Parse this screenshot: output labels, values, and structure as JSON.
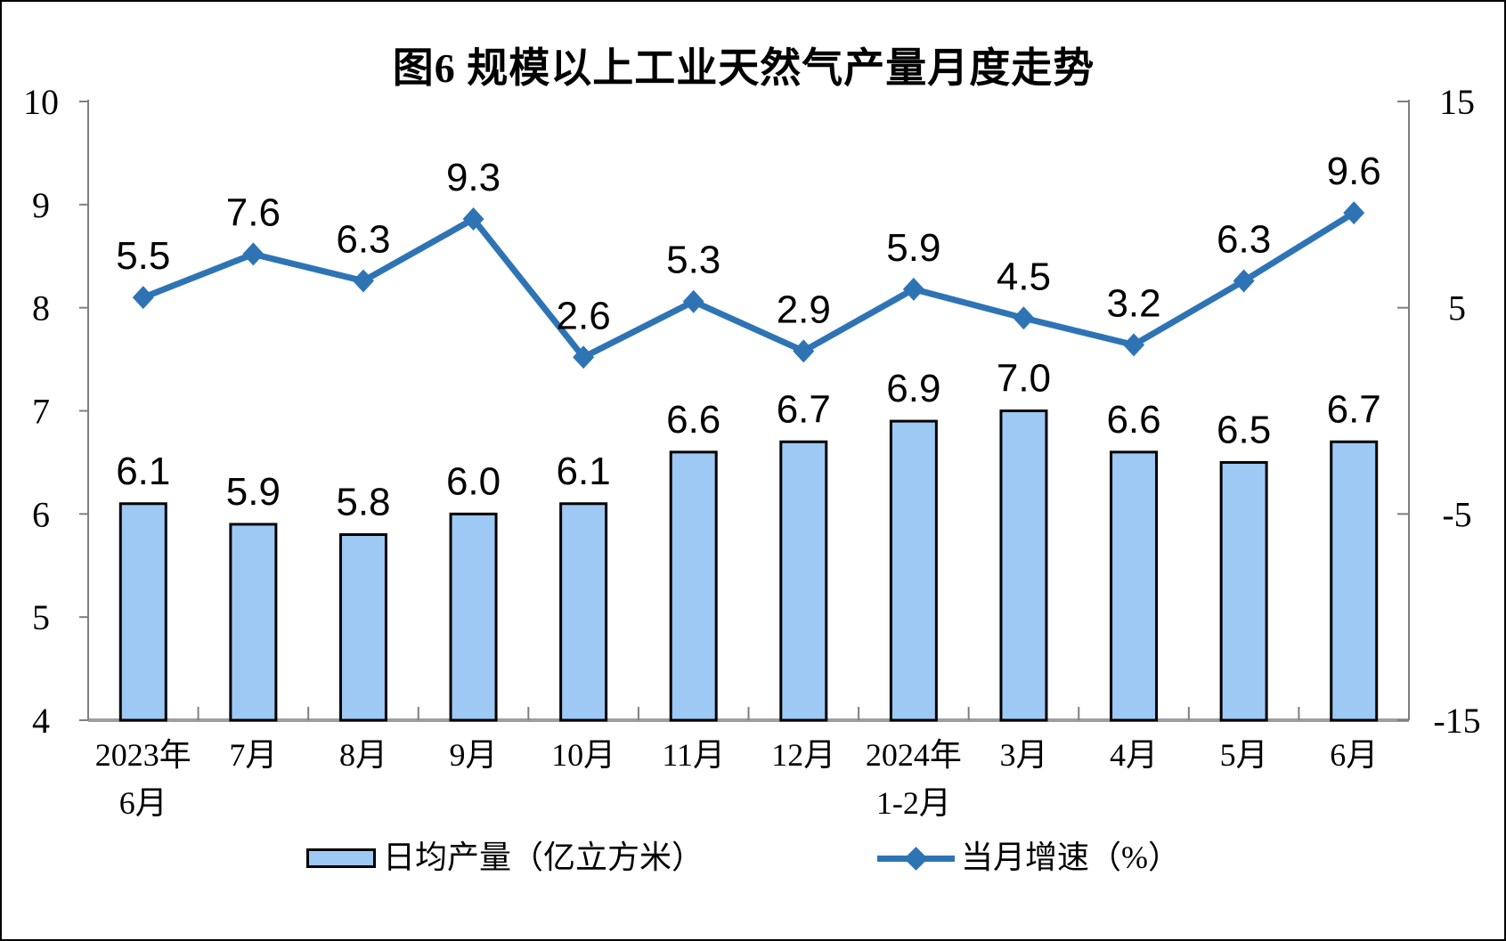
{
  "page": {
    "background": "#ffffff",
    "border_color": "#000000"
  },
  "chart_data": {
    "type": "bar",
    "subtype": "bar+line combo, dual y-axes",
    "title": "图6 规模以上工业天然气产量月度走势",
    "categories": [
      [
        "2023年",
        "6月"
      ],
      [
        "7月"
      ],
      [
        "8月"
      ],
      [
        "9月"
      ],
      [
        "10月"
      ],
      [
        "11月"
      ],
      [
        "12月"
      ],
      [
        "2024年",
        "1-2月"
      ],
      [
        "3月"
      ],
      [
        "4月"
      ],
      [
        "5月"
      ],
      [
        "6月"
      ]
    ],
    "series": [
      {
        "name": "日均产量（亿立方米）",
        "type": "bar",
        "axis": "left",
        "color": "#9DC9F4",
        "border_color": "#000000",
        "values": [
          6.1,
          5.9,
          5.8,
          6.0,
          6.1,
          6.6,
          6.7,
          6.9,
          7.0,
          6.6,
          6.5,
          6.7
        ]
      },
      {
        "name": "当月增速（%）",
        "type": "line",
        "axis": "right",
        "color": "#2E74B5",
        "marker": "diamond",
        "values": [
          5.5,
          7.6,
          6.3,
          9.3,
          2.6,
          5.3,
          2.9,
          5.9,
          4.5,
          3.2,
          6.3,
          9.6
        ]
      }
    ],
    "left_axis": {
      "min": 4,
      "max": 10,
      "ticks": [
        4,
        5,
        6,
        7,
        8,
        9,
        10
      ]
    },
    "right_axis": {
      "min": -15,
      "max": 15,
      "ticks": [
        -15,
        -5,
        5,
        15
      ]
    },
    "grid": false,
    "data_labels": true,
    "legend_position": "bottom",
    "axis_color": "#7f7f7f",
    "baseline_color": "#9e9e9e"
  }
}
